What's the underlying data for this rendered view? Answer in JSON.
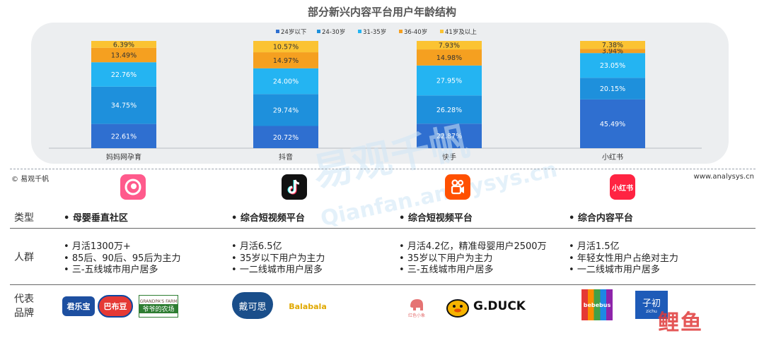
{
  "chart_data": {
    "type": "bar",
    "stacked": true,
    "title": "部分新兴内容平台用户年龄结构",
    "categories": [
      "妈妈网孕育",
      "抖音",
      "快手",
      "小红书"
    ],
    "series": [
      {
        "name": "24岁以下",
        "color": "#2f6fd0",
        "values": [
          22.61,
          20.72,
          22.87,
          45.49
        ],
        "labels": [
          "22.61%",
          "20.72%",
          "22.87%",
          "45.49%"
        ]
      },
      {
        "name": "24-30岁",
        "color": "#1e90dc",
        "values": [
          34.75,
          29.74,
          26.28,
          20.15
        ],
        "labels": [
          "34.75%",
          "29.74%",
          "26.28%",
          "20.15%"
        ]
      },
      {
        "name": "31-35岁",
        "color": "#24b4f2",
        "values": [
          22.76,
          24.0,
          27.95,
          23.05
        ],
        "labels": [
          "22.76%",
          "24.00%",
          "27.95%",
          "23.05%"
        ]
      },
      {
        "name": "36-40岁",
        "color": "#f5a020",
        "values": [
          13.49,
          14.97,
          14.98,
          3.94
        ],
        "labels": [
          "13.49%",
          "14.97%",
          "14.98%",
          "3.94%"
        ]
      },
      {
        "name": "41岁及以上",
        "color": "#fbc332",
        "values": [
          6.39,
          10.57,
          7.93,
          7.38
        ],
        "labels": [
          "6.39%",
          "10.57%",
          "7.93%",
          "7.38%"
        ]
      }
    ],
    "ylim": [
      0,
      100
    ],
    "legend": "top-center",
    "grid": false
  },
  "footer": {
    "left": "© 易观千帆",
    "right": "www.analysys.cn"
  },
  "watermark": {
    "main": "易观千帆",
    "sub": "Qianfan.analysys.cn",
    "corner": "鲤鱼"
  },
  "table": {
    "row_labels": {
      "type": "类型",
      "crowd": "人群",
      "brand1": "代表",
      "brand2": "品牌"
    },
    "columns": [
      {
        "type": "母婴垂直社区",
        "crowd": [
          "月活1300万+",
          "85后、90后、95后为主力",
          "三-五线城市用户居多"
        ],
        "brands": [
          "君乐宝",
          "巴布豆",
          "GRANDPA'S FARM",
          "爷爷的农场"
        ]
      },
      {
        "type": "综合短视频平台",
        "crowd": [
          "月活6.5亿",
          "35岁以下用户为主力",
          "一二线城市用户居多"
        ],
        "brands": [
          "戴可思",
          "Balabala"
        ]
      },
      {
        "type": "综合短视频平台",
        "crowd": [
          "月活4.2亿，精准母婴用户2500万",
          "35岁以下用户为主力",
          "三-五线城市用户居多"
        ],
        "brands": [
          "红色小象",
          "G.DUCK"
        ]
      },
      {
        "type": "综合内容平台",
        "crowd": [
          "月活1.5亿",
          "年轻女性用户占绝对主力",
          "一二线城市用户居多"
        ],
        "brands": [
          "bebebus",
          "子初",
          "zichu"
        ]
      }
    ]
  },
  "logos": {
    "xiaohongshu": "小红书"
  },
  "icons": [
    "mamawang-icon",
    "douyin-icon",
    "kuaishou-icon",
    "xiaohongshu-icon"
  ]
}
